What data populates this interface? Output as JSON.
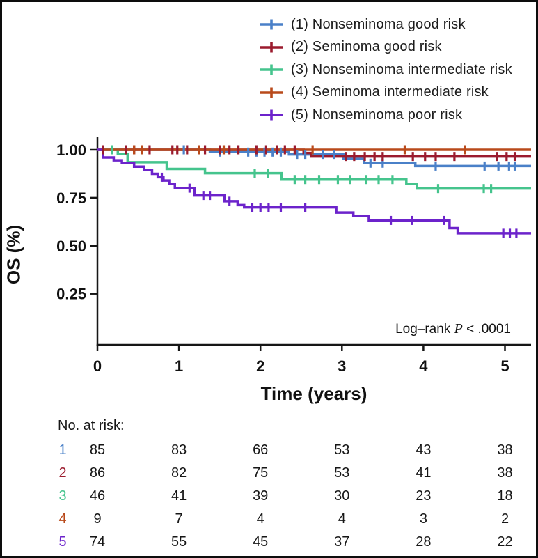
{
  "chart_data": {
    "type": "line",
    "subtype": "kaplan-meier-step",
    "ylabel": "OS (%)",
    "xlabel": "Time (years)",
    "x_ticks": [
      "0",
      "1",
      "2",
      "3",
      "4",
      "5"
    ],
    "y_ticks": [
      {
        "value": 1.0,
        "label": "1.00"
      },
      {
        "value": 0.75,
        "label": "0.75"
      },
      {
        "value": 0.5,
        "label": "0.50"
      },
      {
        "value": 0.25,
        "label": "0.25"
      }
    ],
    "xlim": [
      0,
      5.32
    ],
    "ylim": [
      0,
      1.05
    ],
    "grid": false,
    "legend_position": "top-right",
    "annotation": {
      "prefix": "Log–rank ",
      "p": "P",
      "suffix": " < .0001"
    },
    "series": [
      {
        "id": "1",
        "name": "(1) Nonseminoma good risk",
        "color": "#4a80c8",
        "steps": [
          [
            0,
            1.0
          ],
          [
            1.38,
            0.988
          ],
          [
            2.35,
            0.976
          ],
          [
            3.02,
            0.953
          ],
          [
            3.27,
            0.93
          ],
          [
            3.9,
            0.915
          ]
        ],
        "censors": [
          1.06,
          1.5,
          1.85,
          1.95,
          2.05,
          2.15,
          2.25,
          2.45,
          2.55,
          2.77,
          2.9,
          3.35,
          3.5,
          4.15,
          4.75,
          4.92,
          5.05,
          5.12
        ],
        "end_time": 5.32
      },
      {
        "id": "2",
        "name": "(2) Seminoma good risk",
        "color": "#9b1b2e",
        "steps": [
          [
            0,
            1.0
          ],
          [
            2.53,
            0.983
          ],
          [
            2.62,
            0.965
          ]
        ],
        "censors": [
          0.07,
          0.35,
          0.45,
          0.55,
          0.64,
          0.92,
          0.98,
          1.1,
          1.32,
          1.5,
          1.62,
          1.73,
          1.95,
          2.07,
          2.2,
          2.3,
          2.42,
          3.05,
          3.15,
          3.28,
          3.4,
          3.5,
          3.87,
          4.02,
          4.15,
          4.38,
          4.9,
          5.02,
          5.12
        ],
        "end_time": 5.32
      },
      {
        "id": "3",
        "name": "(3) Nonseminoma intermediate risk",
        "color": "#45c48d",
        "steps": [
          [
            0,
            1.0
          ],
          [
            0.25,
            0.978
          ],
          [
            0.37,
            0.935
          ],
          [
            0.85,
            0.9
          ],
          [
            1.32,
            0.878
          ],
          [
            2.26,
            0.845
          ],
          [
            3.79,
            0.822
          ],
          [
            3.92,
            0.798
          ]
        ],
        "censors": [
          0.18,
          1.93,
          2.09,
          2.42,
          2.55,
          2.72,
          2.95,
          3.1,
          3.3,
          3.45,
          3.62,
          4.18,
          4.74,
          4.83
        ],
        "end_time": 5.32
      },
      {
        "id": "4",
        "name": "(4) Seminoma intermediate risk",
        "color": "#b94a1b",
        "steps": [
          [
            0,
            1.0
          ]
        ],
        "censors": [
          0.45,
          0.55,
          1.25,
          1.55,
          2.64,
          3.77,
          4.51
        ],
        "end_time": 5.32
      },
      {
        "id": "5",
        "name": "(5) Nonseminoma poor risk",
        "color": "#6c23cb",
        "steps": [
          [
            0,
            1.0
          ],
          [
            0.07,
            0.96
          ],
          [
            0.2,
            0.945
          ],
          [
            0.3,
            0.93
          ],
          [
            0.45,
            0.912
          ],
          [
            0.57,
            0.894
          ],
          [
            0.67,
            0.875
          ],
          [
            0.74,
            0.857
          ],
          [
            0.81,
            0.84
          ],
          [
            0.88,
            0.822
          ],
          [
            0.95,
            0.8
          ],
          [
            1.19,
            0.762
          ],
          [
            1.56,
            0.732
          ],
          [
            1.72,
            0.712
          ],
          [
            1.8,
            0.7
          ],
          [
            2.93,
            0.673
          ],
          [
            3.14,
            0.655
          ],
          [
            3.33,
            0.632
          ],
          [
            4.32,
            0.592
          ],
          [
            4.42,
            0.565
          ]
        ],
        "censors": [
          0.79,
          1.13,
          1.3,
          1.38,
          1.62,
          1.9,
          2.0,
          2.1,
          2.25,
          2.55,
          3.6,
          3.86,
          4.25,
          4.98,
          5.06,
          5.14
        ],
        "end_time": 5.32
      }
    ],
    "risk_table": {
      "header": "No. at risk:",
      "time_points": [
        0,
        1,
        2,
        3,
        4,
        5
      ],
      "rows": [
        {
          "group": "1",
          "counts": [
            "85",
            "83",
            "66",
            "53",
            "43",
            "38"
          ]
        },
        {
          "group": "2",
          "counts": [
            "86",
            "82",
            "75",
            "53",
            "41",
            "38"
          ]
        },
        {
          "group": "3",
          "counts": [
            "46",
            "41",
            "39",
            "30",
            "23",
            "18"
          ]
        },
        {
          "group": "4",
          "counts": [
            "9",
            "7",
            "4",
            "4",
            "3",
            "2"
          ]
        },
        {
          "group": "5",
          "counts": [
            "74",
            "55",
            "45",
            "37",
            "28",
            "22"
          ]
        }
      ]
    }
  }
}
